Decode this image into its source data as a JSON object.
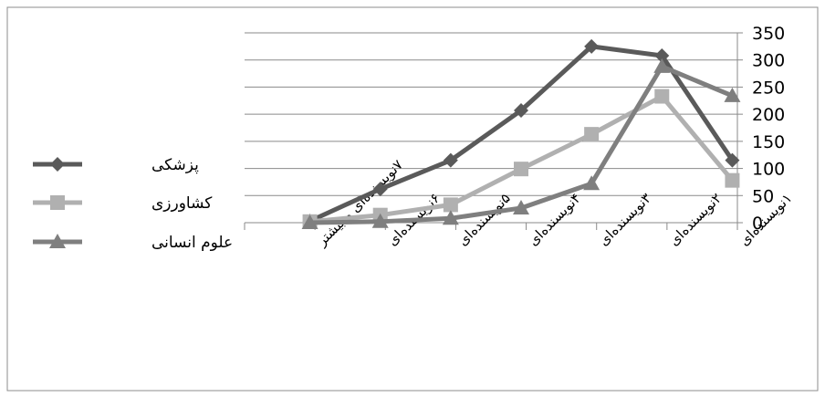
{
  "chart_data": {
    "type": "line",
    "categories": [
      "۷نویسنده‌ای و بیشتر",
      "۶نویسنده‌ای",
      "۵نویسنده‌ای",
      "۴نویسنده‌ای",
      "۳نویسنده‌ای",
      "۲نویسنده‌ای",
      "۱نویسنده‌ای"
    ],
    "series": [
      {
        "name": "پزشکی",
        "values": [
          3,
          62,
          115,
          207,
          325,
          308,
          115
        ],
        "color": "#5a5a5a",
        "marker": "diamond"
      },
      {
        "name": "کشاورزی",
        "values": [
          2,
          14,
          33,
          99,
          163,
          233,
          78
        ],
        "color": "#b0b0b0",
        "marker": "square"
      },
      {
        "name": "علوم انسانی",
        "values": [
          0,
          2,
          8,
          27,
          72,
          288,
          234
        ],
        "color": "#7f7f7f",
        "marker": "triangle"
      }
    ],
    "ylim": [
      0,
      350
    ],
    "yticks": [
      0,
      50,
      100,
      150,
      200,
      250,
      300,
      350
    ],
    "y_axis_side": "right",
    "grid": true,
    "legend_position": "left",
    "title": "",
    "xlabel": "",
    "ylabel": ""
  }
}
